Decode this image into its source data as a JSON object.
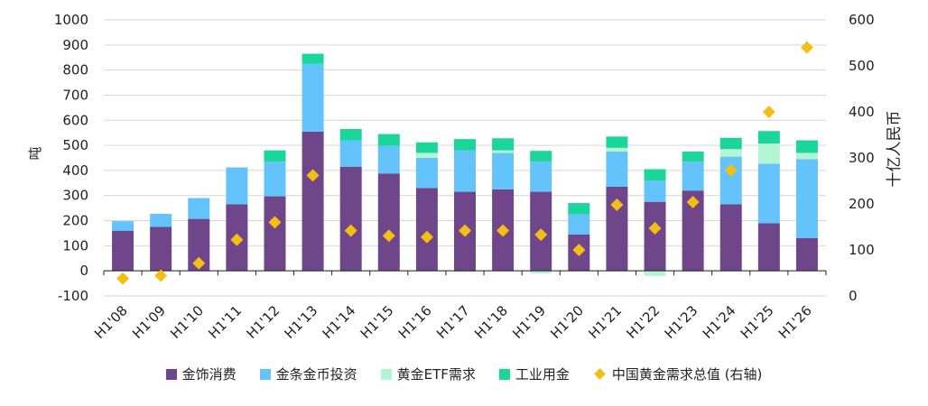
{
  "chart_data": {
    "type": "bar",
    "stacked": true,
    "categories": [
      "H1'08",
      "H1'09",
      "H1'10",
      "H1'11",
      "H1'12",
      "H1'13",
      "H1'14",
      "H1'15",
      "H1'16",
      "H1'17",
      "H1'18",
      "H1'19",
      "H1'20",
      "H1'21",
      "H1'22",
      "H1'23",
      "H1'24",
      "H1'25",
      "H1'26"
    ],
    "ylabel": "吨",
    "y2label": "十亿人民币",
    "ylim": [
      -100,
      1000
    ],
    "y2lim": [
      0,
      600
    ],
    "yticks": [
      "-100",
      "0",
      "100",
      "200",
      "300",
      "400",
      "500",
      "600",
      "700",
      "800",
      "900",
      "1000"
    ],
    "y2ticks": [
      "0",
      "100",
      "200",
      "300",
      "400",
      "500",
      "600"
    ],
    "grid": true,
    "legend_position": "bottom",
    "series": [
      {
        "name": "金饰消费",
        "color": "#6e4689",
        "axis": "left",
        "values": [
          160,
          175,
          207,
          265,
          297,
          555,
          415,
          388,
          330,
          315,
          325,
          315,
          145,
          335,
          275,
          320,
          265,
          190,
          130
        ]
      },
      {
        "name": "金条金币投资",
        "color": "#63c3fa",
        "axis": "left",
        "values": [
          38,
          52,
          83,
          147,
          138,
          270,
          105,
          110,
          120,
          165,
          145,
          120,
          80,
          140,
          85,
          115,
          190,
          237,
          315
        ]
      },
      {
        "name": "黄金ETF需求",
        "color": "#b3f5d2",
        "axis": "left",
        "values": [
          0,
          0,
          0,
          0,
          0,
          0,
          -5,
          0,
          20,
          -5,
          10,
          -10,
          0,
          15,
          -20,
          -5,
          30,
          80,
          25
        ]
      },
      {
        "name": "工业用金",
        "color": "#1bd69a",
        "axis": "left",
        "values": [
          0,
          0,
          0,
          0,
          45,
          40,
          45,
          47,
          42,
          45,
          48,
          43,
          45,
          45,
          45,
          40,
          45,
          50,
          50
        ]
      },
      {
        "name": "中国黄金需求总值 (右轴)",
        "color": "#f5be13",
        "axis": "right",
        "marker": "diamond",
        "values": [
          38,
          44,
          71,
          122,
          160,
          262,
          142,
          131,
          128,
          142,
          142,
          133,
          100,
          198,
          147,
          204,
          273,
          400,
          540
        ]
      }
    ]
  }
}
